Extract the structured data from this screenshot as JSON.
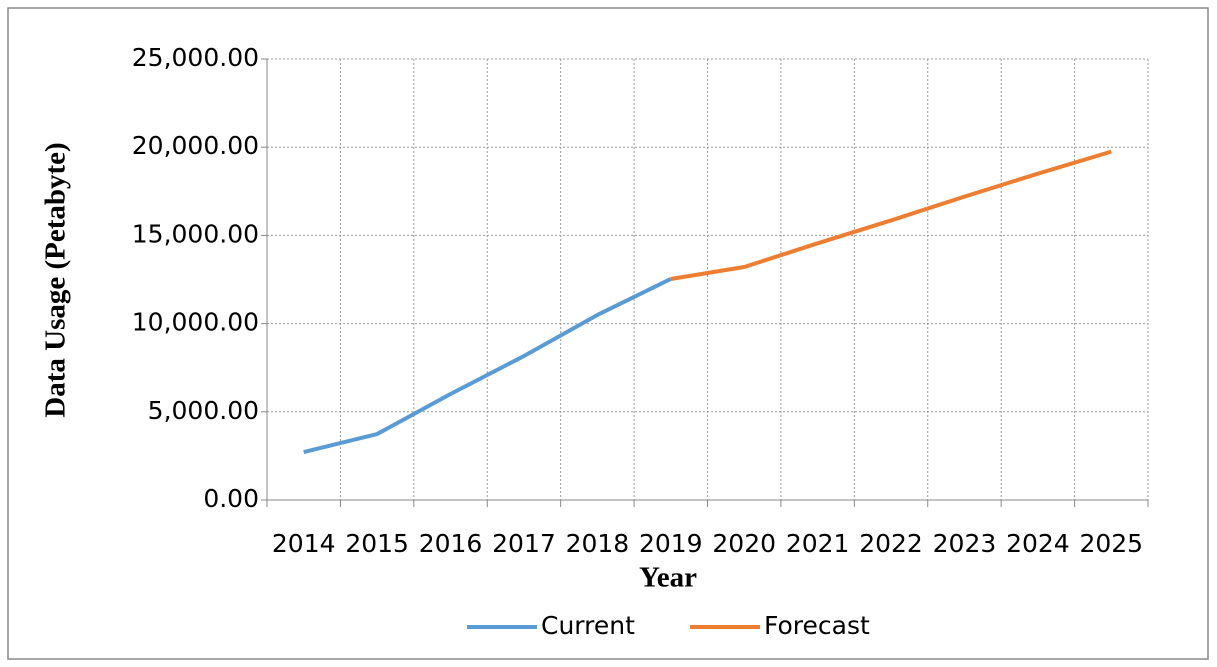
{
  "chart_data": {
    "type": "line",
    "x_label": "Year",
    "y_label": "Data Usage (Petabyte)",
    "categories": [
      "2014",
      "2015",
      "2016",
      "2017",
      "2018",
      "2019",
      "2020",
      "2021",
      "2022",
      "2023",
      "2024",
      "2025"
    ],
    "series": [
      {
        "name": "Current",
        "color": "#5b9bd5",
        "values": [
          2720,
          3740,
          6010,
          8160,
          10490,
          12530,
          null,
          null,
          null,
          null,
          null,
          null
        ]
      },
      {
        "name": "Forecast",
        "color": "#ed7d31",
        "values": [
          null,
          null,
          null,
          null,
          null,
          12530,
          13210,
          14550,
          15850,
          17200,
          18500,
          19750
        ]
      }
    ],
    "ylim": [
      0,
      25000
    ],
    "yticks": [
      {
        "value": 0,
        "label": "0.00"
      },
      {
        "value": 5000,
        "label": "5,000.00"
      },
      {
        "value": 10000,
        "label": "10,000.00"
      },
      {
        "value": 15000,
        "label": "15,000.00"
      },
      {
        "value": 20000,
        "label": "20,000.00"
      },
      {
        "value": 25000,
        "label": "25,000.00"
      }
    ],
    "grid": true,
    "legend": "bottom"
  }
}
